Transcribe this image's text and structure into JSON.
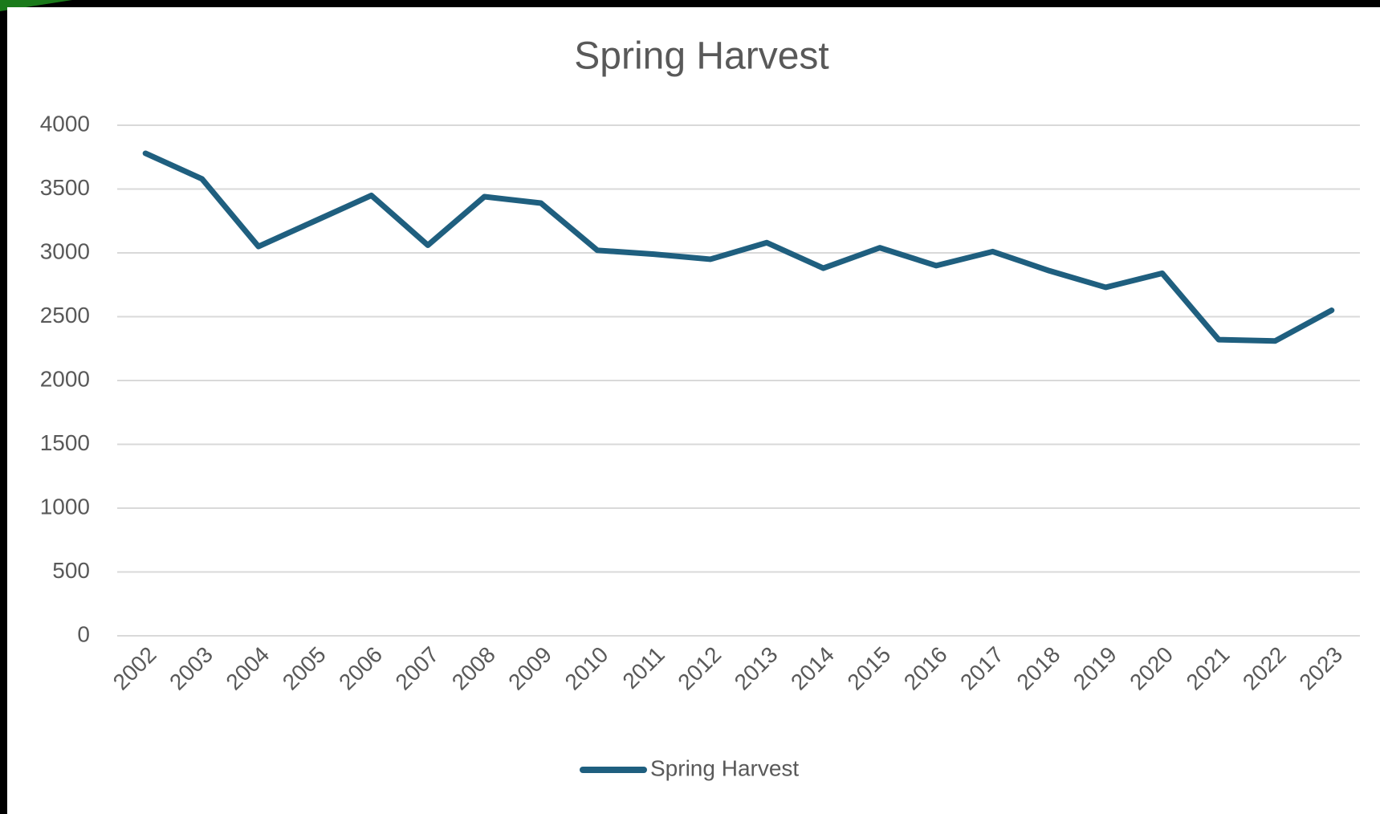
{
  "chart_data": {
    "type": "line",
    "title": "Spring Harvest",
    "categories": [
      "2002",
      "2003",
      "2004",
      "2005",
      "2006",
      "2007",
      "2008",
      "2009",
      "2010",
      "2011",
      "2012",
      "2013",
      "2014",
      "2015",
      "2016",
      "2017",
      "2018",
      "2019",
      "2020",
      "2021",
      "2022",
      "2023"
    ],
    "series": [
      {
        "name": "Spring Harvest",
        "color": "#1f5f7f",
        "values": [
          3780,
          3580,
          3050,
          3250,
          3450,
          3060,
          3440,
          3390,
          3020,
          2990,
          2950,
          3080,
          2880,
          3040,
          2900,
          3010,
          2860,
          2730,
          2840,
          2320,
          2310,
          2550
        ]
      }
    ],
    "ylim": [
      0,
      4000
    ],
    "yticks": [
      0,
      500,
      1000,
      1500,
      2000,
      2500,
      3000,
      3500,
      4000
    ],
    "grid": true,
    "legend": "bottom"
  }
}
